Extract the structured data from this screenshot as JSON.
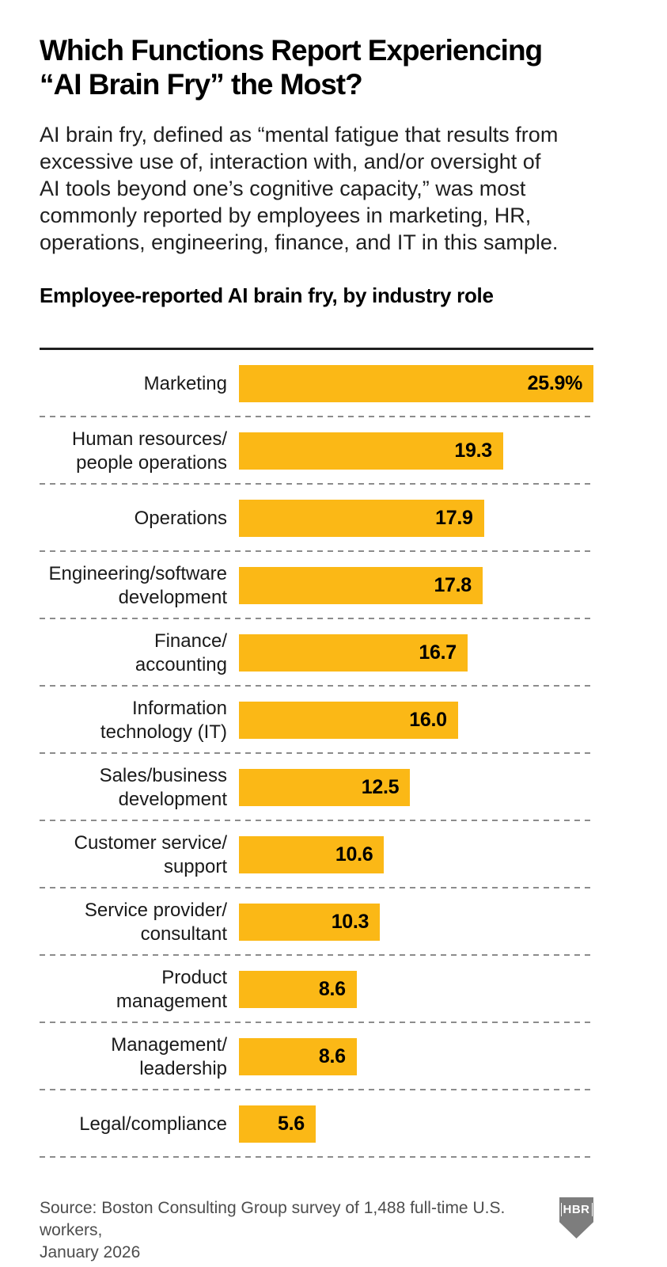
{
  "page": {
    "title": "Which Functions Report Experiencing\n“AI Brain Fry” the Most?",
    "description": "AI brain fry, defined as “mental fatigue that results from\nexcessive use of, interaction with, and/or oversight of\nAI tools beyond one’s cognitive capacity,” was most\ncommonly reported by employees in marketing, HR,\noperations, engineering, finance, and IT in this sample.",
    "chart_heading": "Employee-reported AI brain fry, by industry role",
    "source": "Source: Boston Consulting Group survey of 1,488 full-time U.S. workers,\nJanuary 2026",
    "logo": "HBR"
  },
  "colors": {
    "bar": "#FBB816",
    "top_rule": "#1F1F1F",
    "divider": "#8C8C8C",
    "source_text": "#4D4D4D",
    "logo_bg": "#7D7D7D"
  },
  "chart_data": {
    "type": "bar",
    "orientation": "horizontal",
    "title": "Employee-reported AI brain fry, by industry role",
    "categories": [
      "Marketing",
      "Human resources/people operations",
      "Operations",
      "Engineering/software development",
      "Finance/accounting",
      "Information technology (IT)",
      "Sales/business development",
      "Customer service/support",
      "Service provider/consultant",
      "Product management",
      "Management/leadership",
      "Legal/compliance"
    ],
    "category_lines": [
      "Marketing",
      "Human resources/\npeople operations",
      "Operations",
      "Engineering/software\ndevelopment",
      "Finance/\naccounting",
      "Information\ntechnology (IT)",
      "Sales/business\ndevelopment",
      "Customer service/\nsupport",
      "Service provider/\nconsultant",
      "Product\nmanagement",
      "Management/\nleadership",
      "Legal/compliance"
    ],
    "values": [
      25.9,
      19.3,
      17.9,
      17.8,
      16.7,
      16.0,
      12.5,
      10.6,
      10.3,
      8.6,
      8.6,
      5.6
    ],
    "value_labels": [
      "25.9%",
      "19.3",
      "17.9",
      "17.8",
      "16.7",
      "16.0",
      "12.5",
      "10.6",
      "10.3",
      "8.6",
      "8.6",
      "5.6"
    ],
    "unit": "%",
    "xlim": [
      0,
      25.9
    ],
    "grid": false,
    "legend": false
  }
}
